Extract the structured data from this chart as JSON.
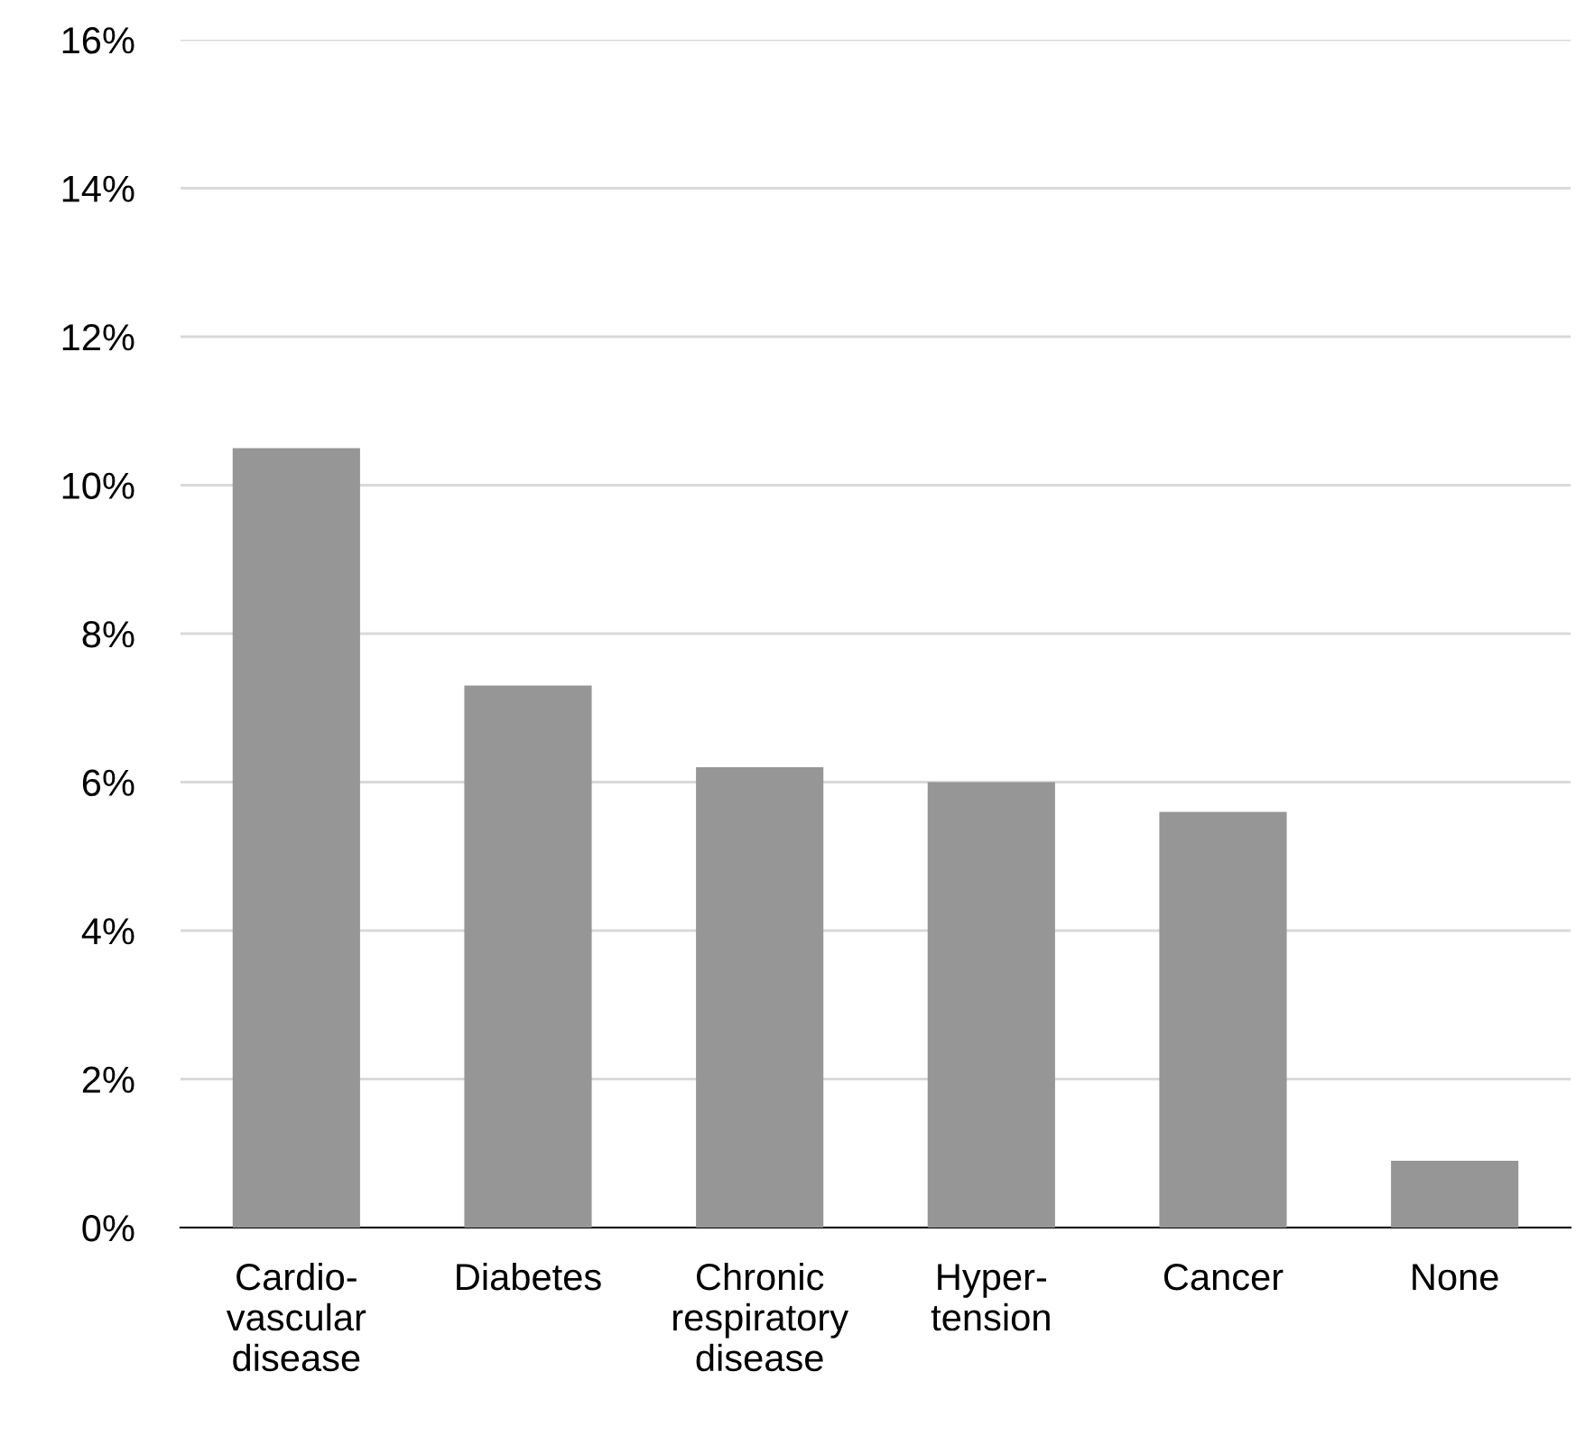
{
  "chart_data": {
    "type": "bar",
    "categories": [
      "Cardio-\nvascular\ndisease",
      "Diabetes",
      "Chronic\nrespiratory\ndisease",
      "Hyper-\ntension",
      "Cancer",
      "None"
    ],
    "values": [
      10.5,
      7.3,
      6.2,
      6.0,
      5.6,
      0.9
    ],
    "color": "#969696",
    "ylim": [
      0,
      16
    ],
    "yticks": [
      {
        "value": 0,
        "label": "0%"
      },
      {
        "value": 2,
        "label": "2%"
      },
      {
        "value": 4,
        "label": "4%"
      },
      {
        "value": 6,
        "label": "6%"
      },
      {
        "value": 8,
        "label": "8%"
      },
      {
        "value": 10,
        "label": "10%"
      },
      {
        "value": 12,
        "label": "12%"
      },
      {
        "value": 14,
        "label": "14%"
      },
      {
        "value": 16,
        "label": "16%"
      }
    ],
    "grid": "y",
    "legend": false
  }
}
